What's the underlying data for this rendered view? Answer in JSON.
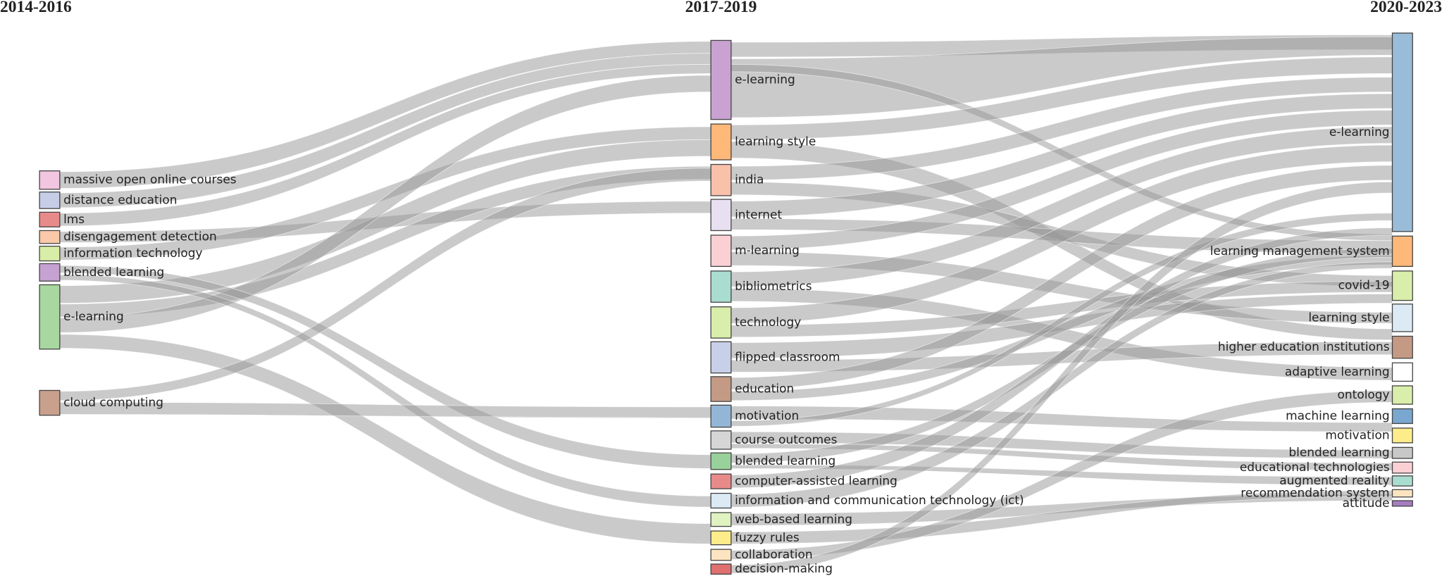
{
  "columns": [
    {
      "title": "2014-2016",
      "nodes": [
        {
          "label": "massive open online courses",
          "color": "#f2c6e0"
        },
        {
          "label": "distance education",
          "color": "#c6cde6"
        },
        {
          "label": "lms",
          "color": "#e98a8a"
        },
        {
          "label": "disengagement detection",
          "color": "#f9c9a9"
        },
        {
          "label": "information technology",
          "color": "#d8eea8"
        },
        {
          "label": "blended learning",
          "color": "#c5a2d1"
        },
        {
          "label": "e-learning",
          "color": "#a8d8a0"
        },
        {
          "label": "cloud computing",
          "color": "#c9a08c"
        }
      ]
    },
    {
      "title": "2017-2019",
      "nodes": [
        {
          "label": "e-learning",
          "color": "#c9a2d2"
        },
        {
          "label": "learning style",
          "color": "#fdb87a"
        },
        {
          "label": "india",
          "color": "#f9c0aa"
        },
        {
          "label": "internet",
          "color": "#e8e0f0"
        },
        {
          "label": "m-learning",
          "color": "#fbd0d5"
        },
        {
          "label": "bibliometrics",
          "color": "#a9ddd0"
        },
        {
          "label": "technology",
          "color": "#d9eeaa"
        },
        {
          "label": "flipped classroom",
          "color": "#c8cfe8"
        },
        {
          "label": "education",
          "color": "#c49a84"
        },
        {
          "label": "motivation",
          "color": "#93b6d7"
        },
        {
          "label": "course outcomes",
          "color": "#d6d6d6"
        },
        {
          "label": "blended learning",
          "color": "#98d19a"
        },
        {
          "label": "computer-assisted learning",
          "color": "#e98a8a"
        },
        {
          "label": "information and communication technology (ict)",
          "color": "#dbeaf5"
        },
        {
          "label": "web-based learning",
          "color": "#dff2c0"
        },
        {
          "label": "fuzzy rules",
          "color": "#fcec8a"
        },
        {
          "label": "collaboration",
          "color": "#fde4c0"
        },
        {
          "label": "decision-making",
          "color": "#e07070"
        }
      ]
    },
    {
      "title": "2020-2023",
      "nodes": [
        {
          "label": "e-learning",
          "color": "#99bcd8"
        },
        {
          "label": "learning management system",
          "color": "#fdb87a"
        },
        {
          "label": "covid-19",
          "color": "#d9eeaa"
        },
        {
          "label": "learning style",
          "color": "#dbeaf5"
        },
        {
          "label": "higher education institutions",
          "color": "#c49a84"
        },
        {
          "label": "adaptive learning",
          "color": "#ffffff"
        },
        {
          "label": "ontology",
          "color": "#d9eeaa"
        },
        {
          "label": "machine learning",
          "color": "#7aa7d0"
        },
        {
          "label": "motivation",
          "color": "#fcec8a"
        },
        {
          "label": "blended learning",
          "color": "#c8c8c8"
        },
        {
          "label": "educational technologies",
          "color": "#fbd0d5"
        },
        {
          "label": "augmented reality",
          "color": "#a9ddd0"
        },
        {
          "label": "recommendation system",
          "color": "#fde4c0"
        },
        {
          "label": "attitude",
          "color": "#a57cc0"
        }
      ]
    }
  ]
}
